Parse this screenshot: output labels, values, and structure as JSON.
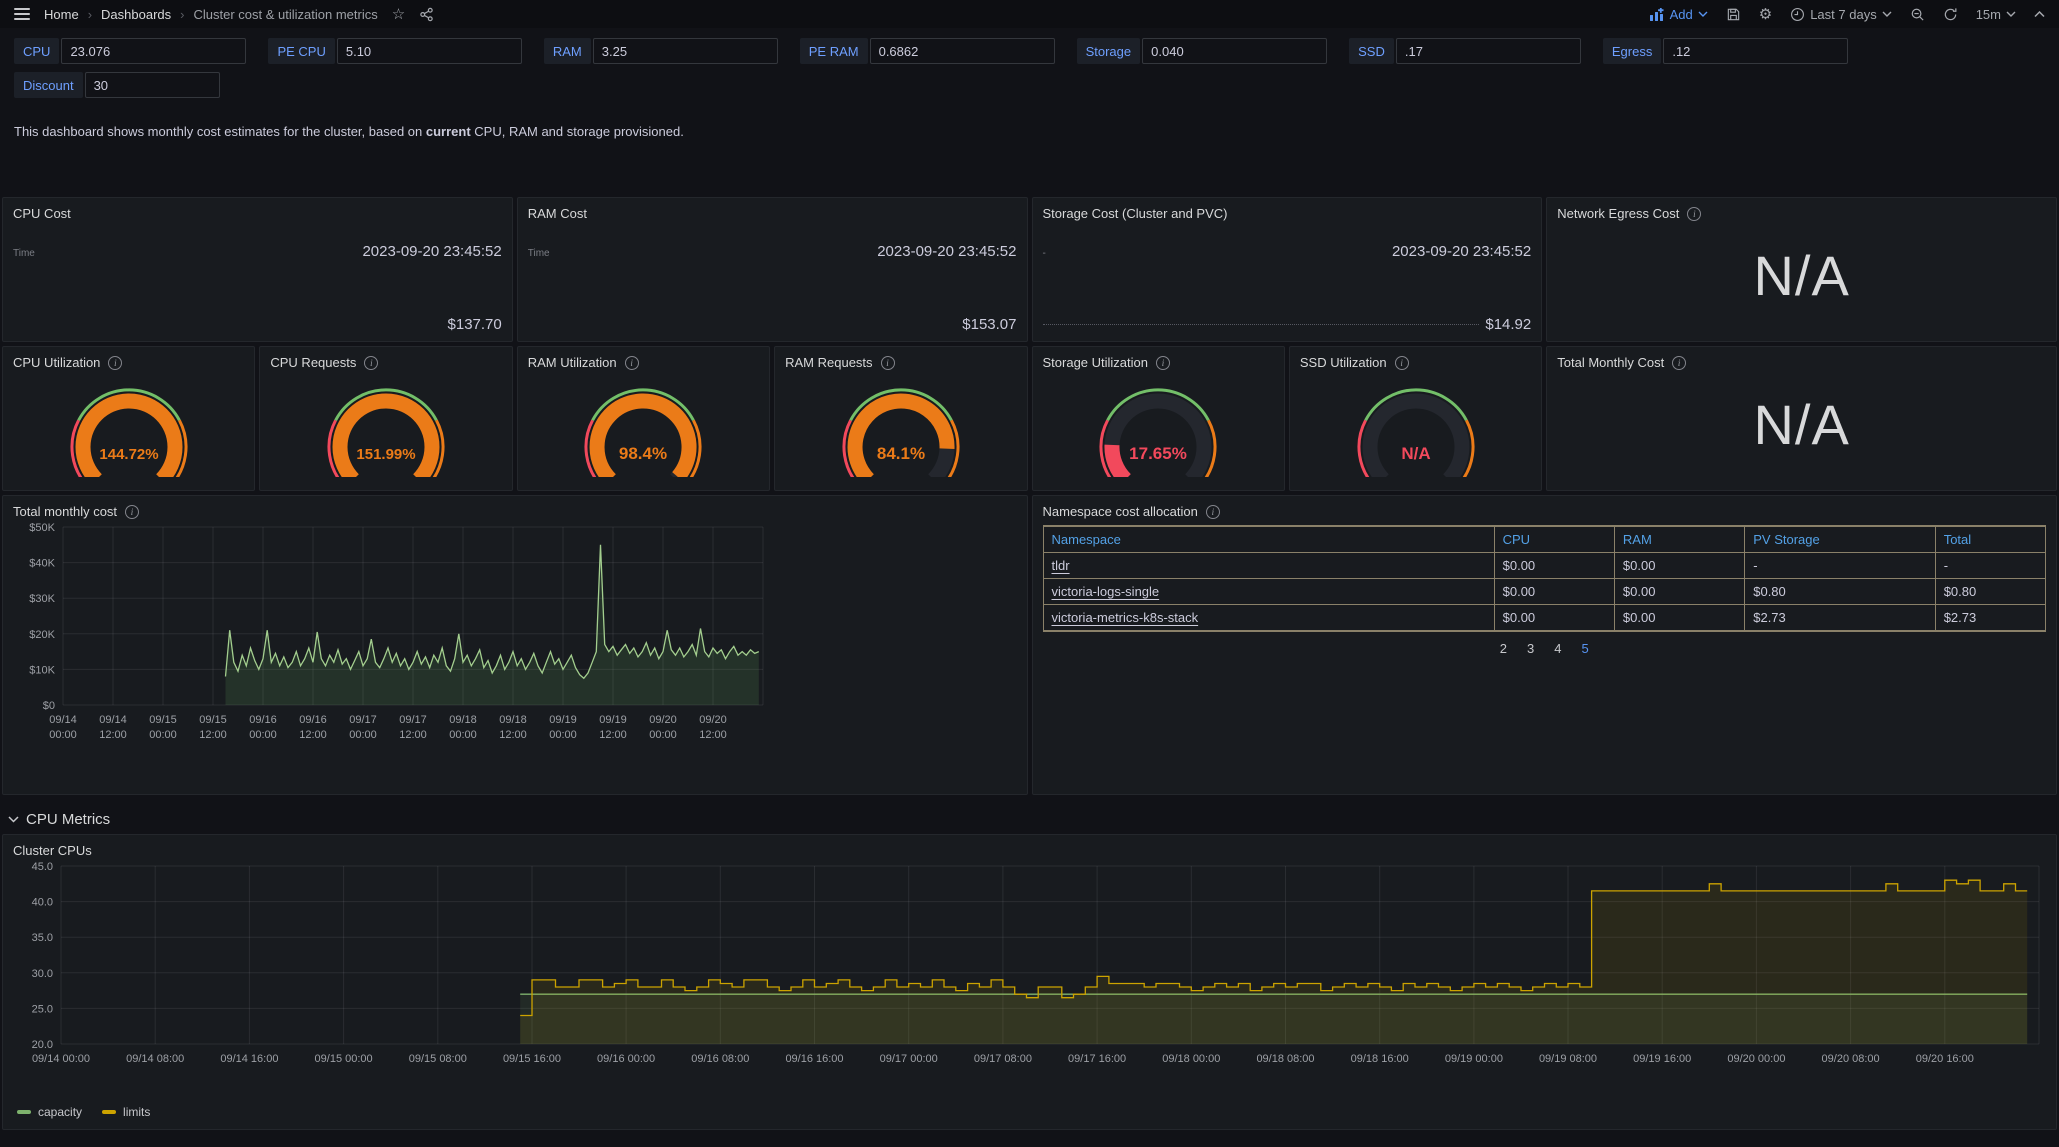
{
  "topbar": {
    "breadcrumb": [
      "Home",
      "Dashboards",
      "Cluster cost & utilization metrics"
    ],
    "actions": {
      "add_label": "Add",
      "time_range": "Last 7 days",
      "refresh_interval": "15m"
    }
  },
  "variables": [
    {
      "label": "CPU",
      "value": "23.076"
    },
    {
      "label": "PE CPU",
      "value": "5.10"
    },
    {
      "label": "RAM",
      "value": "3.25"
    },
    {
      "label": "PE RAM",
      "value": "0.6862"
    },
    {
      "label": "Storage",
      "value": "0.040"
    },
    {
      "label": "SSD",
      "value": ".17"
    },
    {
      "label": "Egress",
      "value": ".12"
    },
    {
      "label": "Discount",
      "value": "30"
    }
  ],
  "description": {
    "pre": "This dashboard shows monthly cost estimates for the cluster, based on ",
    "bold": "current",
    "post": " CPU, RAM and storage provisioned."
  },
  "stat_panels": [
    {
      "title": "CPU Cost",
      "info": false,
      "rows": [
        {
          "label": "Time",
          "value": "2023-09-20 23:45:52"
        }
      ],
      "total": "$137.70",
      "dotted": false
    },
    {
      "title": "RAM Cost",
      "info": false,
      "rows": [
        {
          "label": "Time",
          "value": "2023-09-20 23:45:52"
        }
      ],
      "total": "$153.07",
      "dotted": false
    },
    {
      "title": "Storage Cost (Cluster and PVC)",
      "info": false,
      "rows": [
        {
          "label": "-",
          "value": "2023-09-20 23:45:52"
        }
      ],
      "total": "$14.92",
      "dotted": true
    },
    {
      "title": "Network Egress Cost",
      "info": true,
      "na": "N/A"
    }
  ],
  "gauge_panels": [
    {
      "title": "CPU Utilization",
      "value": "144.72%",
      "pct": 144.72,
      "color": "#EB7B18"
    },
    {
      "title": "CPU Requests",
      "value": "151.99%",
      "pct": 151.99,
      "color": "#EB7B18"
    },
    {
      "title": "RAM Utilization",
      "value": "98.4%",
      "pct": 98.4,
      "color": "#EB7B18"
    },
    {
      "title": "RAM Requests",
      "value": "84.1%",
      "pct": 84.1,
      "color": "#EB7B18"
    },
    {
      "title": "Storage Utilization",
      "value": "17.65%",
      "pct": 17.65,
      "color": "#F2495C"
    },
    {
      "title": "SSD Utilization",
      "value": "N/A",
      "pct": 0,
      "color": "#F2495C"
    }
  ],
  "total_monthly_panel": {
    "title": "Total Monthly Cost",
    "na": "N/A"
  },
  "namespace_table": {
    "title": "Namespace cost allocation",
    "columns": [
      "Namespace",
      "CPU",
      "RAM",
      "PV Storage",
      "Total"
    ],
    "rows": [
      [
        "tldr",
        "$0.00",
        "$0.00",
        "-",
        "-"
      ],
      [
        "victoria-logs-single",
        "$0.00",
        "$0.00",
        "$0.80",
        "$0.80"
      ],
      [
        "victoria-metrics-k8s-stack",
        "$0.00",
        "$0.00",
        "$2.73",
        "$2.73"
      ]
    ],
    "pagination": {
      "pages": [
        "2",
        "3",
        "4",
        "5"
      ],
      "active": "5"
    }
  },
  "section": {
    "title": "CPU Metrics"
  },
  "colors": {
    "accent_blue": "#5794F2",
    "link_blue": "#53A1E6",
    "orange": "#EB7B18",
    "red": "#F2495C",
    "green": "#73BF69",
    "capacity_green": "#7EB26D",
    "limits_yellow": "#CCA300",
    "cost_line_green": "#A3CE8E",
    "table_border": "#8A8169",
    "na_text": "#D8D9DA"
  },
  "chart_data": [
    {
      "id": "total-monthly-cost",
      "type": "line",
      "title": "Total monthly cost",
      "ylim": [
        0,
        50000
      ],
      "x_range": [
        0,
        168
      ],
      "grid": true,
      "legend_position": "none",
      "y_ticks": {
        "values": [
          0,
          10000,
          20000,
          30000,
          40000,
          50000
        ],
        "labels": [
          "$0",
          "$10K",
          "$20K",
          "$30K",
          "$40K",
          "$50K"
        ]
      },
      "x_ticks": {
        "start_hour": 0,
        "step_hours": 12,
        "labels": [
          [
            "09/14",
            "00:00"
          ],
          [
            "09/14",
            "12:00"
          ],
          [
            "09/15",
            "00:00"
          ],
          [
            "09/15",
            "12:00"
          ],
          [
            "09/16",
            "00:00"
          ],
          [
            "09/16",
            "12:00"
          ],
          [
            "09/17",
            "00:00"
          ],
          [
            "09/17",
            "12:00"
          ],
          [
            "09/18",
            "00:00"
          ],
          [
            "09/18",
            "12:00"
          ],
          [
            "09/19",
            "00:00"
          ],
          [
            "09/19",
            "12:00"
          ],
          [
            "09/20",
            "00:00"
          ],
          [
            "09/20",
            "12:00"
          ]
        ]
      },
      "series": [
        {
          "name": "cost",
          "unit": "USD",
          "scale": 1000,
          "color": "#A3CE8E",
          "fill": "rgba(115,191,105,0.14)",
          "step": false,
          "start_hour": 39,
          "step_hours": 1,
          "values": [
            8,
            21,
            12,
            9.5,
            14,
            11,
            16,
            12.5,
            10,
            13,
            21,
            12,
            14.5,
            11,
            13.5,
            10.5,
            12,
            15,
            11,
            13,
            16,
            12,
            20.5,
            13,
            11,
            14,
            12,
            15.5,
            11.5,
            13,
            10,
            12.5,
            15,
            11,
            13,
            18.5,
            12,
            10.5,
            13,
            16,
            12,
            14.5,
            11,
            13,
            10,
            12,
            15,
            11.5,
            13.5,
            10.5,
            14,
            12,
            16,
            11,
            9.5,
            13,
            20,
            12,
            14,
            11,
            13,
            15.5,
            10.5,
            12.5,
            9,
            11,
            14,
            10,
            12,
            15,
            11,
            13,
            10,
            12,
            14.5,
            11,
            9,
            12,
            15,
            11.5,
            13,
            10,
            12,
            14,
            10.5,
            8.5,
            7.5,
            9,
            12,
            15,
            45,
            17,
            15,
            16.5,
            14,
            15.5,
            17,
            14.5,
            16,
            13.5,
            15,
            17.5,
            14,
            16,
            13,
            15,
            21,
            15.5,
            14,
            16,
            13.5,
            15,
            17,
            14,
            21.5,
            15,
            13.5,
            16,
            14.5,
            15.5,
            13,
            15,
            16.5,
            14,
            15,
            14,
            15.5,
            14.5,
            15
          ]
        }
      ]
    },
    {
      "id": "cluster-cpus",
      "type": "line",
      "title": "Cluster CPUs",
      "ylim": [
        20,
        45
      ],
      "x_range": [
        0,
        168
      ],
      "grid": true,
      "legend_position": "bottom",
      "y_ticks": {
        "values": [
          20,
          25,
          30,
          35,
          40,
          45
        ],
        "labels": [
          "20.0",
          "25.0",
          "30.0",
          "35.0",
          "40.0",
          "45.0"
        ]
      },
      "x_ticks": {
        "start_hour": 0,
        "step_hours": 8,
        "labels": [
          "09/14 00:00",
          "09/14 08:00",
          "09/14 16:00",
          "09/15 00:00",
          "09/15 08:00",
          "09/15 16:00",
          "09/16 00:00",
          "09/16 08:00",
          "09/16 16:00",
          "09/17 00:00",
          "09/17 08:00",
          "09/17 16:00",
          "09/18 00:00",
          "09/18 08:00",
          "09/18 16:00",
          "09/19 00:00",
          "09/19 08:00",
          "09/19 16:00",
          "09/20 00:00",
          "09/20 08:00",
          "09/20 16:00"
        ]
      },
      "series": [
        {
          "name": "capacity",
          "unit": "cores",
          "color": "#7EB26D",
          "fill": "rgba(126,178,109,0.10)",
          "step": true,
          "points": [
            [
              39,
              27
            ],
            [
              167,
              27
            ]
          ]
        },
        {
          "name": "limits",
          "unit": "cores",
          "color": "#CCA300",
          "fill": "rgba(204,163,0,0.10)",
          "step": true,
          "start_hour": 39,
          "step_hours": 1,
          "values": [
            24,
            29,
            29,
            28,
            28,
            29,
            29,
            28,
            28.5,
            29,
            28,
            28,
            29,
            28,
            27.5,
            28,
            29,
            28.5,
            28,
            29,
            29,
            28,
            27.5,
            28,
            29,
            28,
            28.5,
            29,
            28,
            27.5,
            28,
            29,
            28,
            28.5,
            28,
            29,
            28,
            27.5,
            28.5,
            28,
            29,
            28,
            27,
            26.5,
            28,
            28,
            26.5,
            27,
            28,
            29.5,
            28.5,
            28.5,
            28.5,
            28,
            28.5,
            28.5,
            28,
            27.5,
            28,
            28.5,
            28,
            28.5,
            27.5,
            28,
            28.5,
            28,
            28.5,
            28.5,
            27.5,
            28,
            28.5,
            28,
            28.5,
            28,
            27.5,
            28.5,
            28,
            28.5,
            28,
            27.5,
            28,
            28.5,
            28,
            28.5,
            28,
            27.5,
            28,
            28.5,
            28,
            28.5,
            28,
            41.5,
            41.5,
            41.5,
            41.5,
            41.5,
            41.5,
            41.5,
            41.5,
            41.5,
            41.5,
            42.5,
            41.5,
            41.5,
            41.5,
            41.5,
            41.5,
            41.5,
            41.5,
            41.5,
            41.5,
            41.5,
            41.5,
            41.5,
            41.5,
            41.5,
            42.5,
            41.5,
            41.5,
            41.5,
            41.5,
            43,
            42.5,
            43,
            41.5,
            41.5,
            42.5,
            41.5,
            41.5
          ]
        }
      ]
    }
  ]
}
